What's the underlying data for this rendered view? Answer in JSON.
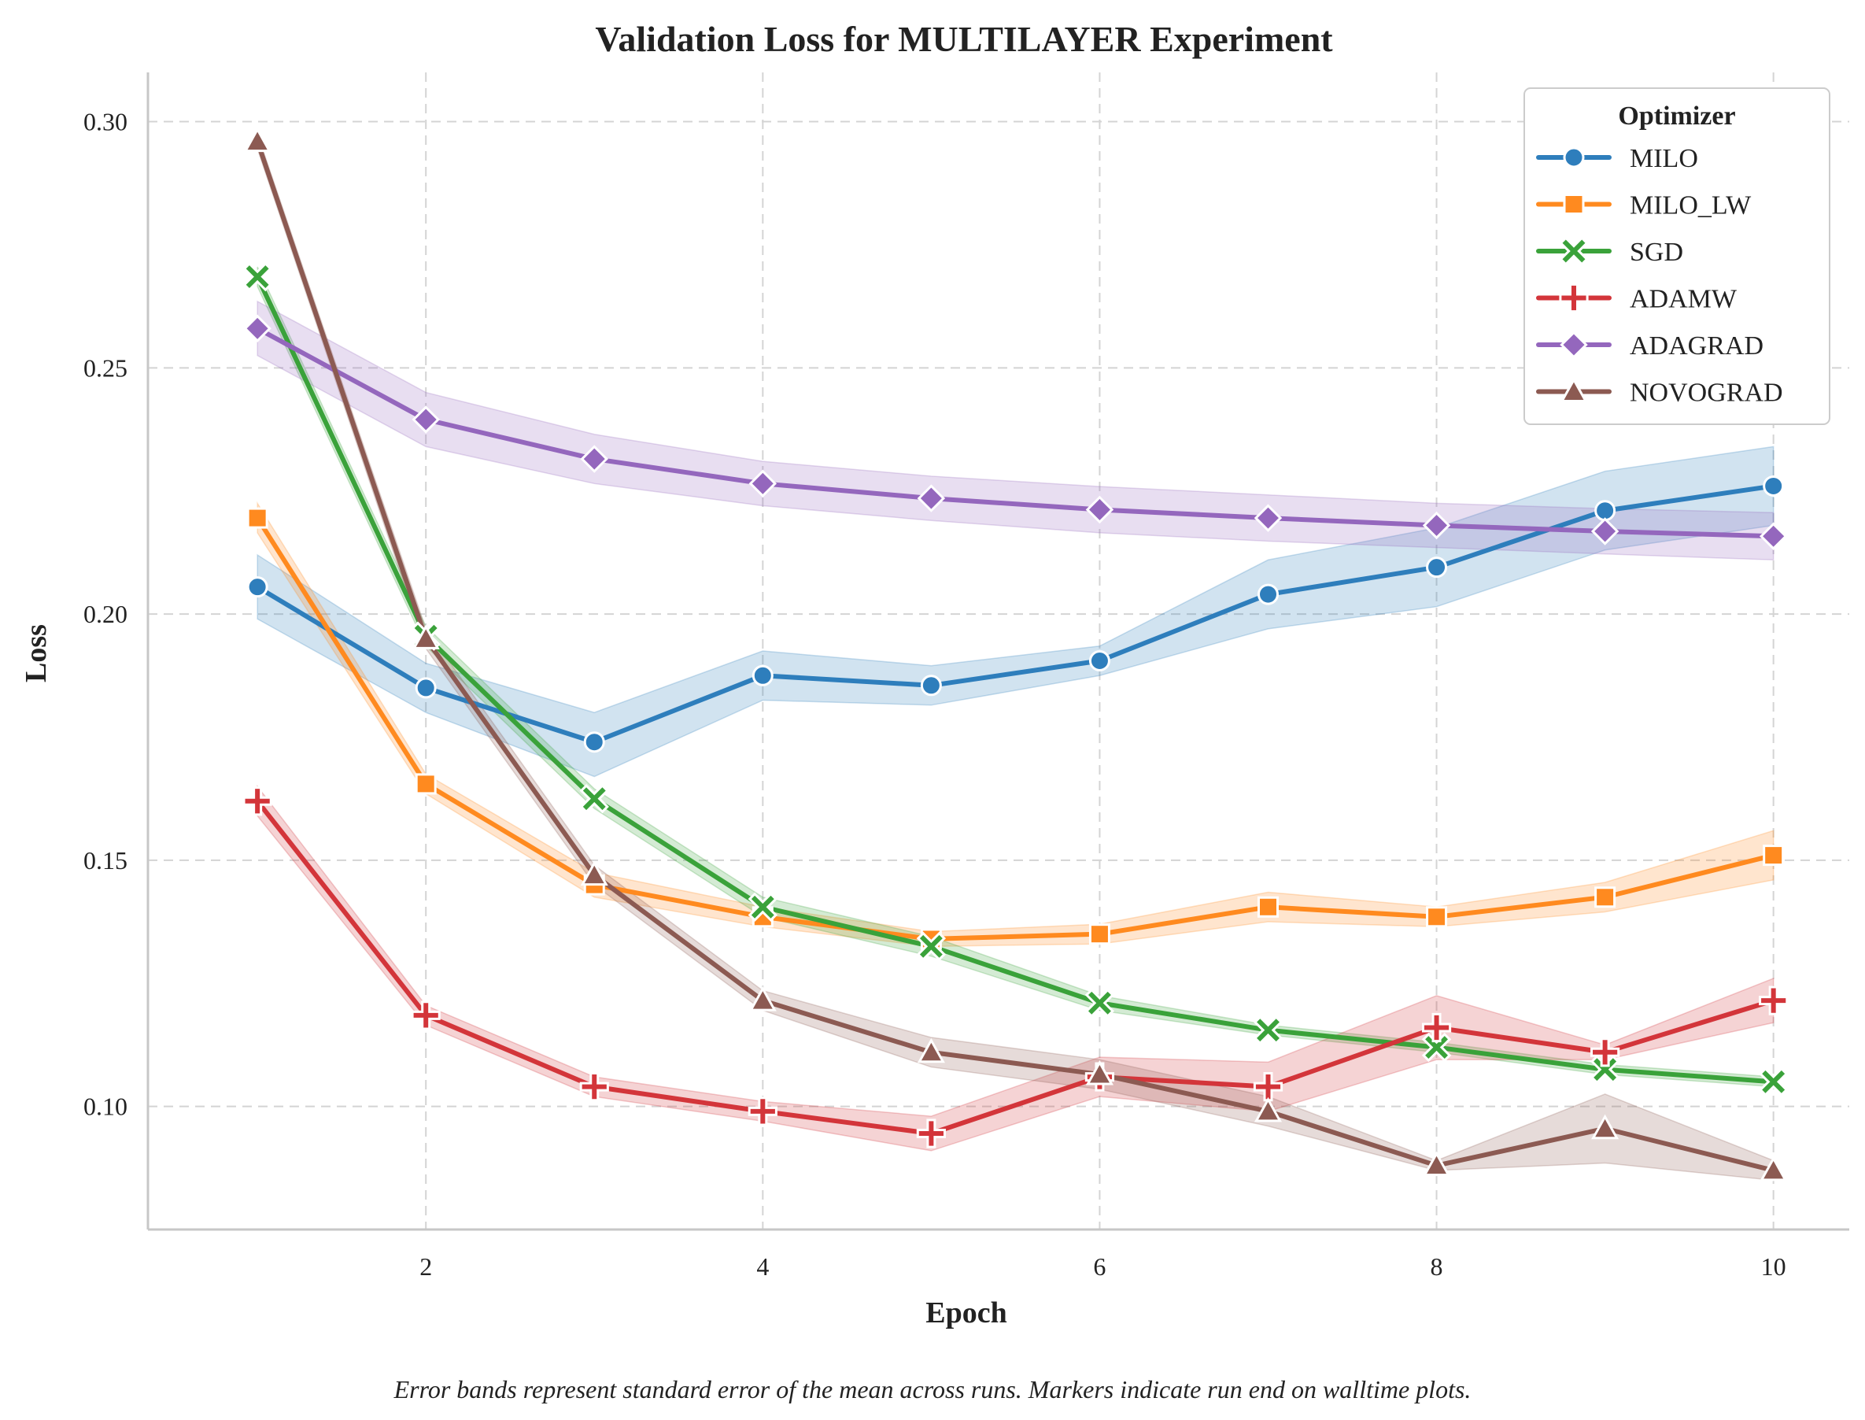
{
  "chart_data": {
    "type": "line",
    "title": "Validation Loss for MULTILAYER Experiment",
    "xlabel": "Epoch",
    "ylabel": "Loss",
    "footnote": "Error bands represent standard error of the mean across runs. Markers indicate run end on walltime plots.",
    "x": [
      1,
      2,
      3,
      4,
      5,
      6,
      7,
      8,
      9,
      10
    ],
    "xlim": [
      0.35,
      10.45
    ],
    "ylim": [
      0.075,
      0.31
    ],
    "xticks": [
      2,
      4,
      6,
      8,
      10
    ],
    "xtick_labels": [
      "2",
      "4",
      "6",
      "8",
      "10"
    ],
    "yticks": [
      0.1,
      0.15,
      0.2,
      0.25,
      0.3
    ],
    "ytick_labels": [
      "0.10",
      "0.15",
      "0.20",
      "0.25",
      "0.30"
    ],
    "grid": true,
    "legend_title": "Optimizer",
    "legend_position": "top-right",
    "series": [
      {
        "name": "MILO",
        "color": "#2e7ebc",
        "marker": "circle",
        "values": [
          0.2055,
          0.185,
          0.174,
          0.1875,
          0.1855,
          0.1905,
          0.204,
          0.2095,
          0.221,
          0.226
        ],
        "lower": [
          0.199,
          0.18,
          0.167,
          0.1825,
          0.1815,
          0.1875,
          0.197,
          0.2015,
          0.213,
          0.218
        ],
        "upper": [
          0.212,
          0.19,
          0.18,
          0.1925,
          0.1895,
          0.1935,
          0.211,
          0.2175,
          0.229,
          0.234
        ]
      },
      {
        "name": "MILO_LW",
        "color": "#ff8a1f",
        "marker": "square",
        "values": [
          0.2195,
          0.1655,
          0.145,
          0.1385,
          0.134,
          0.135,
          0.1405,
          0.1385,
          0.1425,
          0.151
        ],
        "lower": [
          0.2165,
          0.1635,
          0.1425,
          0.1365,
          0.1325,
          0.133,
          0.1375,
          0.1365,
          0.1395,
          0.146
        ],
        "upper": [
          0.2225,
          0.1675,
          0.1475,
          0.1405,
          0.1355,
          0.137,
          0.1435,
          0.1405,
          0.1455,
          0.156
        ]
      },
      {
        "name": "SGD",
        "color": "#3aa23a",
        "marker": "x",
        "values": [
          0.2685,
          0.1955,
          0.1625,
          0.1405,
          0.1325,
          0.121,
          0.1155,
          0.112,
          0.1075,
          0.105
        ],
        "lower": [
          0.2665,
          0.1935,
          0.1605,
          0.1385,
          0.1305,
          0.1195,
          0.1145,
          0.111,
          0.1065,
          0.104
        ],
        "upper": [
          0.2705,
          0.1975,
          0.1645,
          0.1425,
          0.1345,
          0.1225,
          0.1165,
          0.113,
          0.1085,
          0.106
        ]
      },
      {
        "name": "ADAMW",
        "color": "#d3353a",
        "marker": "plus",
        "values": [
          0.162,
          0.1185,
          0.104,
          0.099,
          0.0945,
          0.106,
          0.104,
          0.116,
          0.111,
          0.1215
        ],
        "lower": [
          0.159,
          0.1165,
          0.102,
          0.097,
          0.091,
          0.102,
          0.099,
          0.1095,
          0.1095,
          0.117
        ],
        "upper": [
          0.165,
          0.1205,
          0.106,
          0.101,
          0.098,
          0.11,
          0.109,
          0.1225,
          0.1125,
          0.126
        ]
      },
      {
        "name": "ADAGRAD",
        "color": "#9467bd",
        "marker": "diamond",
        "values": [
          0.258,
          0.2395,
          0.2315,
          0.2265,
          0.2235,
          0.2212,
          0.2195,
          0.218,
          0.2168,
          0.2158
        ],
        "lower": [
          0.2525,
          0.234,
          0.2265,
          0.222,
          0.219,
          0.2165,
          0.2148,
          0.2135,
          0.2122,
          0.211
        ],
        "upper": [
          0.2635,
          0.245,
          0.2365,
          0.231,
          0.228,
          0.2259,
          0.2242,
          0.2225,
          0.2214,
          0.2206
        ]
      },
      {
        "name": "NOVOGRAD",
        "color": "#8c5a52",
        "marker": "triangle",
        "values": [
          0.296,
          0.195,
          0.147,
          0.1215,
          0.111,
          0.1065,
          0.099,
          0.088,
          0.0955,
          0.087
        ],
        "lower": [
          0.2945,
          0.193,
          0.145,
          0.1195,
          0.108,
          0.1035,
          0.096,
          0.087,
          0.0885,
          0.085
        ],
        "upper": [
          0.2975,
          0.197,
          0.149,
          0.1235,
          0.114,
          0.1095,
          0.102,
          0.089,
          0.1025,
          0.089
        ]
      }
    ]
  }
}
